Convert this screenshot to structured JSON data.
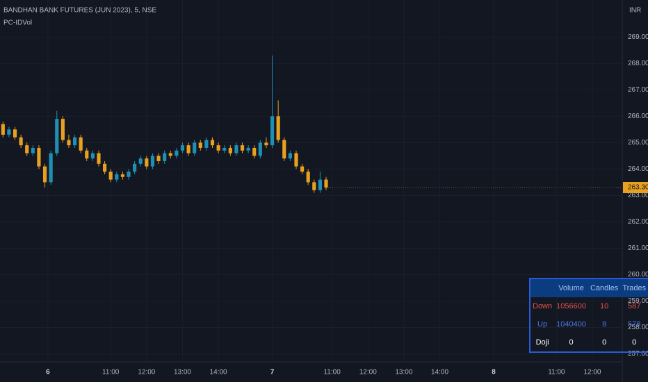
{
  "chart_data": {
    "type": "candlestick",
    "title": "BANDHAN BANK FUTURES (JUN 2023), 5, NSE",
    "subtitle": "PC-IDVol",
    "y_label": "INR",
    "up_color": "#1f8fb4",
    "down_color": "#e8a020",
    "grid": true,
    "xlim": [
      -0.5,
      103.5
    ],
    "ylim": [
      256.7,
      270.4
    ],
    "yticks": [
      {
        "value": 257,
        "label": "257.00"
      },
      {
        "value": 258,
        "label": "258.00"
      },
      {
        "value": 259,
        "label": "259.00"
      },
      {
        "value": 260,
        "label": "260.00"
      },
      {
        "value": 261,
        "label": "261.00"
      },
      {
        "value": 262,
        "label": "262.00"
      },
      {
        "value": 263,
        "label": "263.00"
      },
      {
        "value": 264,
        "label": "264.00"
      },
      {
        "value": 265,
        "label": "265.00"
      },
      {
        "value": 266,
        "label": "266.00"
      },
      {
        "value": 267,
        "label": "267.00"
      },
      {
        "value": 268,
        "label": "268.00"
      },
      {
        "value": 269,
        "label": "269.00"
      }
    ],
    "xticks": [
      {
        "value": 7.5,
        "label": "6"
      },
      {
        "value": 18,
        "label": "11:00"
      },
      {
        "value": 24,
        "label": "12:00"
      },
      {
        "value": 30,
        "label": "13:00"
      },
      {
        "value": 36,
        "label": "14:00"
      },
      {
        "value": 45,
        "label": "7"
      },
      {
        "value": 55,
        "label": "11:00"
      },
      {
        "value": 61,
        "label": "12:00"
      },
      {
        "value": 67,
        "label": "13:00"
      },
      {
        "value": 73,
        "label": "14:00"
      },
      {
        "value": 82,
        "label": "8"
      },
      {
        "value": 92.5,
        "label": "11:00"
      },
      {
        "value": 98.5,
        "label": "12:00"
      }
    ],
    "last_price": {
      "value": 263.3,
      "label": "263.30"
    },
    "open": [
      265.7,
      265.3,
      265.5,
      265.2,
      264.9,
      264.6,
      264.8,
      264.1,
      263.5,
      264.6,
      265.9,
      265.1,
      264.9,
      265.2,
      264.7,
      264.4,
      264.6,
      264.2,
      263.9,
      263.6,
      263.8,
      263.7,
      263.9,
      264.2,
      264.4,
      264.1,
      264.5,
      264.3,
      264.6,
      264.5,
      264.7,
      264.9,
      264.6,
      265.0,
      264.8,
      265.1,
      264.9,
      264.7,
      264.8,
      264.6,
      264.9,
      264.7,
      264.8,
      264.5,
      265.0,
      264.9,
      266.0,
      265.1,
      264.4,
      264.6,
      264.1,
      263.9,
      263.5,
      263.2,
      263.6
    ],
    "high": [
      265.8,
      265.6,
      265.6,
      265.3,
      265.0,
      264.9,
      264.9,
      264.2,
      264.7,
      266.2,
      266.0,
      265.3,
      265.3,
      265.3,
      264.8,
      264.7,
      264.7,
      264.3,
      264.0,
      263.9,
      263.9,
      264.0,
      264.3,
      264.5,
      264.5,
      264.6,
      264.6,
      264.7,
      264.7,
      264.8,
      265.0,
      265.0,
      265.1,
      265.1,
      265.2,
      265.2,
      265.0,
      264.9,
      264.9,
      265.0,
      265.0,
      264.9,
      264.9,
      265.1,
      265.2,
      268.3,
      266.6,
      265.2,
      264.7,
      264.7,
      264.2,
      264.0,
      263.6,
      263.9,
      263.7
    ],
    "low": [
      265.2,
      265.2,
      265.1,
      264.8,
      264.5,
      264.5,
      264.0,
      263.3,
      263.4,
      264.5,
      265.0,
      264.8,
      264.8,
      264.6,
      264.3,
      264.3,
      264.1,
      263.8,
      263.5,
      263.5,
      263.6,
      263.6,
      263.8,
      264.1,
      264.0,
      264.0,
      264.2,
      264.2,
      264.4,
      264.4,
      264.6,
      264.5,
      264.5,
      264.7,
      264.7,
      264.8,
      264.6,
      264.6,
      264.5,
      264.5,
      264.6,
      264.6,
      264.4,
      264.4,
      264.8,
      264.8,
      265.0,
      264.3,
      264.3,
      264.0,
      263.8,
      263.4,
      263.1,
      263.1,
      263.2
    ],
    "close": [
      265.3,
      265.5,
      265.2,
      264.9,
      264.6,
      264.8,
      264.1,
      263.5,
      264.6,
      265.9,
      265.1,
      264.9,
      265.2,
      264.7,
      264.4,
      264.6,
      264.2,
      263.9,
      263.6,
      263.8,
      263.7,
      263.9,
      264.2,
      264.4,
      264.1,
      264.5,
      264.3,
      264.6,
      264.5,
      264.7,
      264.9,
      264.6,
      265.0,
      264.8,
      265.1,
      264.9,
      264.7,
      264.8,
      264.6,
      264.9,
      264.7,
      264.8,
      264.5,
      265.0,
      264.9,
      266.0,
      265.1,
      264.4,
      264.6,
      264.1,
      263.9,
      263.5,
      263.2,
      263.6,
      263.3
    ]
  },
  "table": {
    "header": [
      "Volume",
      "Candles",
      "Trades"
    ],
    "rows": [
      {
        "label": "Down",
        "color": "#e0524f",
        "values": [
          1056600,
          10,
          587
        ]
      },
      {
        "label": "Up",
        "color": "#4a78e0",
        "values": [
          1040400,
          8,
          578
        ]
      },
      {
        "label": "Doji",
        "color": "#ffffff",
        "values": [
          0,
          0,
          0
        ]
      }
    ]
  }
}
